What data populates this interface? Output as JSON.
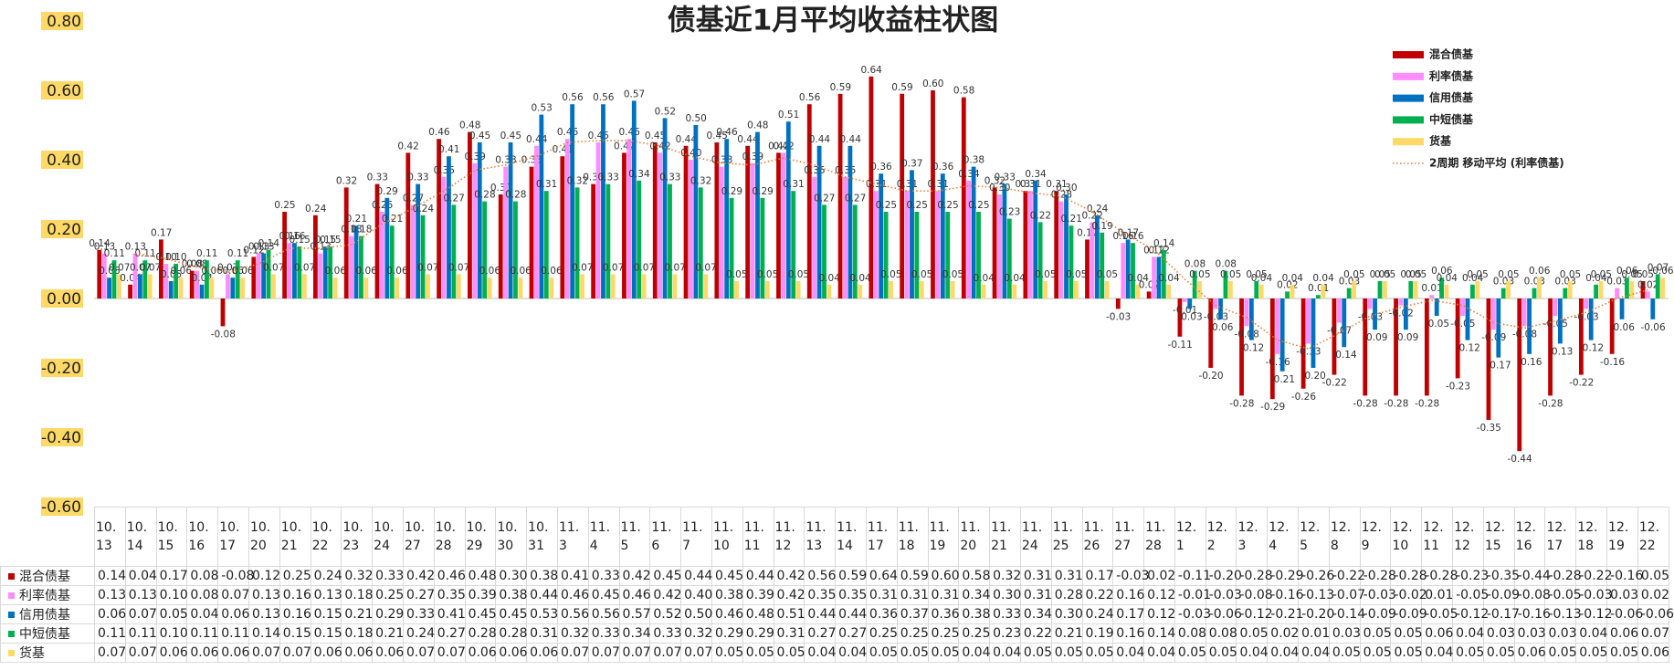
{
  "chart_data": {
    "type": "bar",
    "title": "债基近1月平均收益柱状图",
    "categories": [
      "10.13",
      "10.14",
      "10.15",
      "10.16",
      "10.17",
      "10.20",
      "10.21",
      "10.22",
      "10.23",
      "10.24",
      "10.27",
      "10.28",
      "10.29",
      "10.30",
      "10.31",
      "11.3",
      "11.4",
      "11.5",
      "11.6",
      "11.7",
      "11.10",
      "11.11",
      "11.12",
      "11.13",
      "11.14",
      "11.17",
      "11.18",
      "11.19",
      "11.20",
      "11.21",
      "11.24",
      "11.25",
      "11.26",
      "11.27",
      "11.28",
      "12.1",
      "12.2",
      "12.3",
      "12.4",
      "12.5",
      "12.8",
      "12.9",
      "12.10",
      "12.11",
      "12.12",
      "12.15",
      "12.16",
      "12.17",
      "12.18",
      "12.19",
      "12.22"
    ],
    "series": [
      {
        "name": "混合债基",
        "color": "#c00000",
        "values": [
          0.14,
          0.04,
          0.17,
          0.08,
          -0.08,
          0.12,
          0.25,
          0.24,
          0.32,
          0.33,
          0.42,
          0.46,
          0.48,
          0.3,
          0.38,
          0.41,
          0.33,
          0.42,
          0.45,
          0.44,
          0.45,
          0.44,
          0.42,
          0.56,
          0.59,
          0.64,
          0.59,
          0.6,
          0.58,
          0.32,
          0.31,
          0.31,
          0.17,
          -0.03,
          0.02,
          -0.11,
          -0.2,
          -0.28,
          -0.29,
          -0.26,
          -0.22,
          -0.28,
          -0.28,
          -0.28,
          -0.23,
          -0.35,
          -0.44,
          -0.28,
          -0.22,
          -0.16,
          0.05
        ],
        "value_labels": [
          "0.14",
          "0.04",
          "0.17",
          "0.08",
          "-0.08",
          "0.12",
          "0.25",
          "0.24",
          "0.32",
          "0.33",
          "0.42",
          "0.46",
          "0.48",
          "0.30",
          "0.38",
          "0.41",
          "0.33",
          "0.42",
          "0.45",
          "0.44",
          "0.45",
          "0.44",
          "0.42",
          "0.56",
          "0.59",
          "0.64",
          "0.59",
          "0.60",
          "0.58",
          "0.32",
          "0.31",
          "0.31",
          "0.17",
          "-0.03",
          "0.02",
          "-0.11",
          "-0.20",
          "-0.28",
          "-0.29",
          "-0.26",
          "-0.22",
          "-0.28",
          "-0.28",
          "-0.28",
          "-0.23",
          "-0.35",
          "-0.44",
          "-0.28",
          "-0.22",
          "-0.16",
          "0.05"
        ]
      },
      {
        "name": "利率债基",
        "color": "#ff8cff",
        "values": [
          0.13,
          0.13,
          0.1,
          0.08,
          0.07,
          0.13,
          0.16,
          0.13,
          0.18,
          0.25,
          0.27,
          0.35,
          0.39,
          0.38,
          0.44,
          0.46,
          0.45,
          0.46,
          0.42,
          0.4,
          0.38,
          0.39,
          0.42,
          0.35,
          0.35,
          0.31,
          0.31,
          0.31,
          0.34,
          0.3,
          0.31,
          0.28,
          0.22,
          0.16,
          0.12,
          -0.01,
          -0.03,
          -0.08,
          -0.16,
          -0.13,
          -0.07,
          -0.03,
          -0.02,
          0.01,
          -0.05,
          -0.09,
          -0.08,
          -0.05,
          -0.03,
          0.03,
          0.02
        ],
        "value_labels": [
          "0.13",
          "0.13",
          "0.10",
          "0.08",
          "0.07",
          "0.13",
          "0.16",
          "0.13",
          "0.18",
          "0.25",
          "0.27",
          "0.35",
          "0.39",
          "0.38",
          "0.44",
          "0.46",
          "0.45",
          "0.46",
          "0.42",
          "0.40",
          "0.38",
          "0.39",
          "0.42",
          "0.35",
          "0.35",
          "0.31",
          "0.31",
          "0.31",
          "0.34",
          "0.30",
          "0.31",
          "0.28",
          "0.22",
          "0.16",
          "0.12",
          "-0.01",
          "-0.03",
          "-0.08",
          "-0.16",
          "-0.13",
          "-0.07",
          "-0.03",
          "-0.02",
          "0.01",
          "-0.05",
          "-0.09",
          "-0.08",
          "-0.05",
          "-0.03",
          "0.03",
          "0.02"
        ]
      },
      {
        "name": "信用债基",
        "color": "#0070c0",
        "values": [
          0.06,
          0.07,
          0.05,
          0.04,
          0.06,
          0.13,
          0.16,
          0.15,
          0.21,
          0.29,
          0.33,
          0.41,
          0.45,
          0.45,
          0.53,
          0.56,
          0.56,
          0.57,
          0.52,
          0.5,
          0.46,
          0.48,
          0.51,
          0.44,
          0.44,
          0.36,
          0.37,
          0.36,
          0.38,
          0.33,
          0.34,
          0.3,
          0.24,
          0.17,
          0.12,
          -0.03,
          -0.06,
          -0.12,
          -0.21,
          -0.2,
          -0.14,
          -0.09,
          -0.09,
          -0.05,
          -0.12,
          -0.17,
          -0.16,
          -0.13,
          -0.12,
          -0.06,
          -0.06
        ],
        "value_labels": [
          "0.06",
          "0.07",
          "0.05",
          "0.04",
          "0.06",
          "0.13",
          "0.16",
          "0.15",
          "0.21",
          "0.29",
          "0.33",
          "0.41",
          "0.45",
          "0.45",
          "0.53",
          "0.56",
          "0.56",
          "0.57",
          "0.52",
          "0.50",
          "0.46",
          "0.48",
          "0.51",
          "0.44",
          "0.44",
          "0.36",
          "0.37",
          "0.36",
          "0.38",
          "0.33",
          "0.34",
          "0.30",
          "0.24",
          "0.17",
          "0.12",
          "-0.03",
          "-0.06",
          "-0.12",
          "-0.21",
          "-0.20",
          "-0.14",
          "-0.09",
          "-0.09",
          "-0.05",
          "-0.12",
          "-0.17",
          "-0.16",
          "-0.13",
          "-0.12",
          "-0.06",
          "-0.06"
        ]
      },
      {
        "name": "中短债基",
        "color": "#00b050",
        "values": [
          0.11,
          0.11,
          0.1,
          0.11,
          0.11,
          0.14,
          0.15,
          0.15,
          0.18,
          0.21,
          0.24,
          0.27,
          0.28,
          0.28,
          0.31,
          0.32,
          0.33,
          0.34,
          0.33,
          0.32,
          0.29,
          0.29,
          0.31,
          0.27,
          0.27,
          0.25,
          0.25,
          0.25,
          0.25,
          0.23,
          0.22,
          0.21,
          0.19,
          0.16,
          0.14,
          0.08,
          0.08,
          0.05,
          0.02,
          0.01,
          0.03,
          0.05,
          0.05,
          0.06,
          0.04,
          0.03,
          0.03,
          0.03,
          0.04,
          0.06,
          0.07
        ],
        "value_labels": [
          "0.11",
          "0.11",
          "0.10",
          "0.11",
          "0.11",
          "0.14",
          "0.15",
          "0.15",
          "0.18",
          "0.21",
          "0.24",
          "0.27",
          "0.28",
          "0.28",
          "0.31",
          "0.32",
          "0.33",
          "0.34",
          "0.33",
          "0.32",
          "0.29",
          "0.29",
          "0.31",
          "0.27",
          "0.27",
          "0.25",
          "0.25",
          "0.25",
          "0.25",
          "0.23",
          "0.22",
          "0.21",
          "0.19",
          "0.16",
          "0.14",
          "0.08",
          "0.08",
          "0.05",
          "0.02",
          "0.01",
          "0.03",
          "0.05",
          "0.05",
          "0.06",
          "0.04",
          "0.03",
          "0.03",
          "0.03",
          "0.04",
          "0.06",
          "0.07"
        ]
      },
      {
        "name": "货基",
        "color": "#ffd966",
        "values": [
          0.07,
          0.07,
          0.06,
          0.06,
          0.06,
          0.07,
          0.07,
          0.06,
          0.06,
          0.06,
          0.07,
          0.07,
          0.06,
          0.06,
          0.06,
          0.07,
          0.07,
          0.07,
          0.07,
          0.07,
          0.05,
          0.05,
          0.05,
          0.04,
          0.04,
          0.05,
          0.05,
          0.05,
          0.04,
          0.04,
          0.05,
          0.05,
          0.05,
          0.04,
          0.04,
          0.05,
          0.05,
          0.04,
          0.04,
          0.04,
          0.05,
          0.05,
          0.05,
          0.04,
          0.05,
          0.05,
          0.06,
          0.05,
          0.05,
          0.05,
          0.06
        ],
        "value_labels": [
          "0.07",
          "0.07",
          "0.06",
          "0.06",
          "0.06",
          "0.07",
          "0.07",
          "0.06",
          "0.06",
          "0.06",
          "0.07",
          "0.07",
          "0.06",
          "0.06",
          "0.06",
          "0.07",
          "0.07",
          "0.07",
          "0.07",
          "0.07",
          "0.05",
          "0.05",
          "0.05",
          "0.04",
          "0.04",
          "0.05",
          "0.05",
          "0.05",
          "0.04",
          "0.04",
          "0.05",
          "0.05",
          "0.05",
          "0.04",
          "0.04",
          "0.05",
          "0.05",
          "0.04",
          "0.04",
          "0.04",
          "0.05",
          "0.05",
          "0.05",
          "0.04",
          "0.05",
          "0.05",
          "0.06",
          "0.05",
          "0.05",
          "0.05",
          "0.06"
        ]
      }
    ],
    "trendline": {
      "name": "2周期 移动平均 (利率债基)",
      "period": 2,
      "color": "#ed7d31"
    },
    "ylim": [
      -0.6,
      0.8
    ],
    "yticks": [
      {
        "value": -0.6,
        "label": "-0.60"
      },
      {
        "value": -0.4,
        "label": "-0.40"
      },
      {
        "value": -0.2,
        "label": "-0.20"
      },
      {
        "value": 0,
        "label": "0.00"
      },
      {
        "value": 0.2,
        "label": "0.20"
      },
      {
        "value": 0.4,
        "label": "0.40"
      },
      {
        "value": 0.6,
        "label": "0.60"
      },
      {
        "value": 0.8,
        "label": "0.80"
      }
    ],
    "legend": "upper right",
    "data_table": true
  }
}
